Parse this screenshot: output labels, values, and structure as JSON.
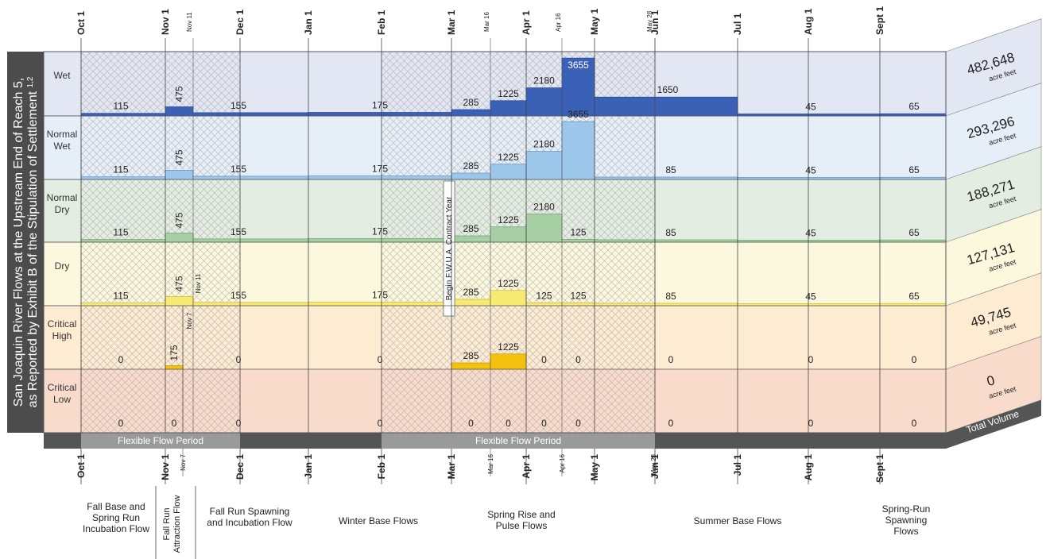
{
  "chart_data": {
    "type": "area",
    "title": "",
    "ylabel_line1": "San Joaquin River Flows at the Upstream End of Reach 5,",
    "ylabel_line2": "as Reported by Exhibit B of the Stipulation of Settlement",
    "ylabel_sup": "1,2",
    "months": [
      "Oct 1",
      "Nov 1",
      "Dec 1",
      "Jan 1",
      "Feb 1",
      "Mar 1",
      "Apr 1",
      "May 1",
      "Jun 1",
      "Jul 1",
      "Aug 1",
      "Sept 1"
    ],
    "minor_dates_top": [
      "Nov 11",
      "Mar 16",
      "Apr 16",
      "May 28"
    ],
    "minor_dates_bottom": [
      "Nov 7",
      "Mar 16",
      "Apr 16",
      "May 28"
    ],
    "year_types": [
      "Wet",
      "Normal Wet",
      "Normal Dry",
      "Dry",
      "Critical High",
      "Critical Low"
    ],
    "series": [
      {
        "name": "Wet",
        "total_volume": "482,648",
        "segments": [
          {
            "from": "Oct 1",
            "to": "Nov 1",
            "flow": 115,
            "label": "115"
          },
          {
            "from": "Nov 1",
            "to": "Nov 11",
            "flow": 475,
            "label": "475"
          },
          {
            "from": "Nov 11",
            "to": "Jan 1",
            "flow": 155,
            "label": "155"
          },
          {
            "from": "Jan 1",
            "to": "Mar 1",
            "flow": 175,
            "label": "175"
          },
          {
            "from": "Mar 1",
            "to": "Mar 16",
            "flow": 285,
            "label": "285"
          },
          {
            "from": "Mar 16",
            "to": "Apr 1",
            "flow": 1225,
            "label": "1225"
          },
          {
            "from": "Apr 1",
            "to": "Apr 16",
            "flow": 2180,
            "label": "2180"
          },
          {
            "from": "Apr 16",
            "to": "May 1",
            "flow": 3655,
            "label": "3655"
          },
          {
            "from": "May 1",
            "to": "Jul 1",
            "flow": 1650,
            "label": "1650"
          },
          {
            "from": "Jul 1",
            "to": "Sept 1",
            "flow": 45,
            "label": "45"
          },
          {
            "from": "Sept 1",
            "to": "Oct 1",
            "flow": 65,
            "label": "65"
          }
        ]
      },
      {
        "name": "Normal Wet",
        "total_volume": "293,296",
        "segments": [
          {
            "from": "Oct 1",
            "to": "Nov 1",
            "flow": 115,
            "label": "115"
          },
          {
            "from": "Nov 1",
            "to": "Nov 11",
            "flow": 475,
            "label": "475"
          },
          {
            "from": "Nov 11",
            "to": "Jan 1",
            "flow": 155,
            "label": "155"
          },
          {
            "from": "Jan 1",
            "to": "Mar 1",
            "flow": 175,
            "label": "175"
          },
          {
            "from": "Mar 1",
            "to": "Mar 16",
            "flow": 285,
            "label": "285"
          },
          {
            "from": "Mar 16",
            "to": "Apr 1",
            "flow": 1225,
            "label": "1225"
          },
          {
            "from": "Apr 1",
            "to": "Apr 16",
            "flow": 2180,
            "label": "2180"
          },
          {
            "from": "Apr 16",
            "to": "May 1",
            "flow": 3655,
            "label": "3655"
          },
          {
            "from": "May 1",
            "to": "Jul 1",
            "flow": 85,
            "label": "85"
          },
          {
            "from": "Jul 1",
            "to": "Sept 1",
            "flow": 45,
            "label": "45"
          },
          {
            "from": "Sept 1",
            "to": "Oct 1",
            "flow": 65,
            "label": "65"
          }
        ]
      },
      {
        "name": "Normal Dry",
        "total_volume": "188,271",
        "segments": [
          {
            "from": "Oct 1",
            "to": "Nov 1",
            "flow": 115,
            "label": "115"
          },
          {
            "from": "Nov 1",
            "to": "Nov 11",
            "flow": 475,
            "label": "475"
          },
          {
            "from": "Nov 11",
            "to": "Jan 1",
            "flow": 155,
            "label": "155"
          },
          {
            "from": "Jan 1",
            "to": "Mar 1",
            "flow": 175,
            "label": "175"
          },
          {
            "from": "Mar 1",
            "to": "Mar 16",
            "flow": 285,
            "label": "285"
          },
          {
            "from": "Mar 16",
            "to": "Apr 1",
            "flow": 1225,
            "label": "1225"
          },
          {
            "from": "Apr 1",
            "to": "Apr 16",
            "flow": 2180,
            "label": "2180"
          },
          {
            "from": "Apr 16",
            "to": "May 1",
            "flow": 125,
            "label": "125"
          },
          {
            "from": "May 1",
            "to": "Jul 1",
            "flow": 85,
            "label": "85"
          },
          {
            "from": "Jul 1",
            "to": "Sept 1",
            "flow": 45,
            "label": "45"
          },
          {
            "from": "Sept 1",
            "to": "Oct 1",
            "flow": 65,
            "label": "65"
          }
        ]
      },
      {
        "name": "Dry",
        "total_volume": "127,131",
        "segments": [
          {
            "from": "Oct 1",
            "to": "Nov 1",
            "flow": 115,
            "label": "115"
          },
          {
            "from": "Nov 1",
            "to": "Nov 11",
            "flow": 475,
            "label": "475"
          },
          {
            "from": "Nov 11",
            "to": "Jan 1",
            "flow": 155,
            "label": "155"
          },
          {
            "from": "Jan 1",
            "to": "Mar 1",
            "flow": 175,
            "label": "175"
          },
          {
            "from": "Mar 1",
            "to": "Mar 16",
            "flow": 285,
            "label": "285"
          },
          {
            "from": "Mar 16",
            "to": "Apr 1",
            "flow": 1225,
            "label": "1225"
          },
          {
            "from": "Apr 1",
            "to": "Apr 16",
            "flow": 125,
            "label": "125"
          },
          {
            "from": "Apr 16",
            "to": "May 1",
            "flow": 125,
            "label": "125"
          },
          {
            "from": "May 1",
            "to": "Jul 1",
            "flow": 85,
            "label": "85"
          },
          {
            "from": "Jul 1",
            "to": "Sept 1",
            "flow": 45,
            "label": "45"
          },
          {
            "from": "Sept 1",
            "to": "Oct 1",
            "flow": 65,
            "label": "65"
          }
        ]
      },
      {
        "name": "Critical High",
        "total_volume": "49,745",
        "segments": [
          {
            "from": "Oct 1",
            "to": "Nov 1",
            "flow": 0,
            "label": "0"
          },
          {
            "from": "Nov 1",
            "to": "Nov 7",
            "flow": 175,
            "label": "175"
          },
          {
            "from": "Nov 7",
            "to": "Jan 1",
            "flow": 0,
            "label": "0"
          },
          {
            "from": "Jan 1",
            "to": "Mar 1",
            "flow": 0,
            "label": "0"
          },
          {
            "from": "Mar 1",
            "to": "Mar 16",
            "flow": 285,
            "label": "285"
          },
          {
            "from": "Mar 16",
            "to": "Apr 1",
            "flow": 1225,
            "label": "1225"
          },
          {
            "from": "Apr 1",
            "to": "Apr 16",
            "flow": 0,
            "label": "0"
          },
          {
            "from": "Apr 16",
            "to": "May 1",
            "flow": 0,
            "label": "0"
          },
          {
            "from": "May 1",
            "to": "Jul 1",
            "flow": 0,
            "label": "0"
          },
          {
            "from": "Jul 1",
            "to": "Sept 1",
            "flow": 0,
            "label": "0"
          },
          {
            "from": "Sept 1",
            "to": "Oct 1",
            "flow": 0,
            "label": "0"
          }
        ]
      },
      {
        "name": "Critical Low",
        "total_volume": "0",
        "segments": [
          {
            "from": "Oct 1",
            "to": "Nov 1",
            "flow": 0,
            "label": "0"
          },
          {
            "from": "Nov 1",
            "to": "Nov 7",
            "flow": 0,
            "label": "0"
          },
          {
            "from": "Nov 7",
            "to": "Jan 1",
            "flow": 0,
            "label": "0"
          },
          {
            "from": "Jan 1",
            "to": "Mar 1",
            "flow": 0,
            "label": "0"
          },
          {
            "from": "Mar 1",
            "to": "Mar 16",
            "flow": 0,
            "label": "0"
          },
          {
            "from": "Mar 16",
            "to": "Apr 1",
            "flow": 0,
            "label": "0"
          },
          {
            "from": "Apr 1",
            "to": "Apr 16",
            "flow": 0,
            "label": "0"
          },
          {
            "from": "Apr 16",
            "to": "May 1",
            "flow": 0,
            "label": "0"
          },
          {
            "from": "May 1",
            "to": "Jul 1",
            "flow": 0,
            "label": "0"
          },
          {
            "from": "Jul 1",
            "to": "Sept 1",
            "flow": 0,
            "label": "0"
          },
          {
            "from": "Sept 1",
            "to": "Oct 1",
            "flow": 0,
            "label": "0"
          }
        ]
      }
    ],
    "total_volume_unit": "acre feet",
    "total_volume_header": "Total Volume",
    "flexible_flow_periods": [
      {
        "from": "Oct 1",
        "to": "Dec 1",
        "label": "Flexible Flow Period"
      },
      {
        "from": "Feb 1",
        "to": "May 28",
        "label": "Flexible Flow Period"
      }
    ],
    "contract_year_label": "Begin F.W.U.A. Contract Year",
    "flow_periods": [
      {
        "from": "Oct 1",
        "to": "Nov 1",
        "label": "Fall Base and Spring Run Incubation Flow"
      },
      {
        "from": "Nov 1",
        "to": "Nov 7",
        "label": "Fall Run Attraction Flow"
      },
      {
        "from": "Nov 7",
        "to": "Jan 1",
        "label": "Fall Run Spawning and Incubation Flow"
      },
      {
        "from": "Jan 1",
        "to": "Mar 1",
        "label": "Winter Base Flows"
      },
      {
        "from": "Mar 1",
        "to": "May 1",
        "label": "Spring Rise and Pulse Flows"
      },
      {
        "from": "May 1",
        "to": "Sept 1",
        "label": "Summer Base Flows"
      },
      {
        "from": "Sept 1",
        "to": "Oct 1",
        "label": "Spring-Run Spawning Flows"
      }
    ],
    "colors": {
      "wet": "#3a61b5",
      "normal_wet": "#9cc7ea",
      "normal_dry": "#a7cfa4",
      "dry": "#f6ea72",
      "critical_high": "#f4c20d",
      "row_bg_wet": "#e3e7f3",
      "row_bg_normal_wet": "#e6eef8",
      "row_bg_normal_dry": "#e4ede2",
      "row_bg_dry": "#fbf8dd",
      "row_bg_critical_high": "#fdebd2",
      "row_bg_critical_low": "#f9dbcb",
      "ylabel_panel": "#4c4c4c",
      "flex_bar": "#9a9a9a",
      "timeline_bar": "#555555"
    }
  }
}
